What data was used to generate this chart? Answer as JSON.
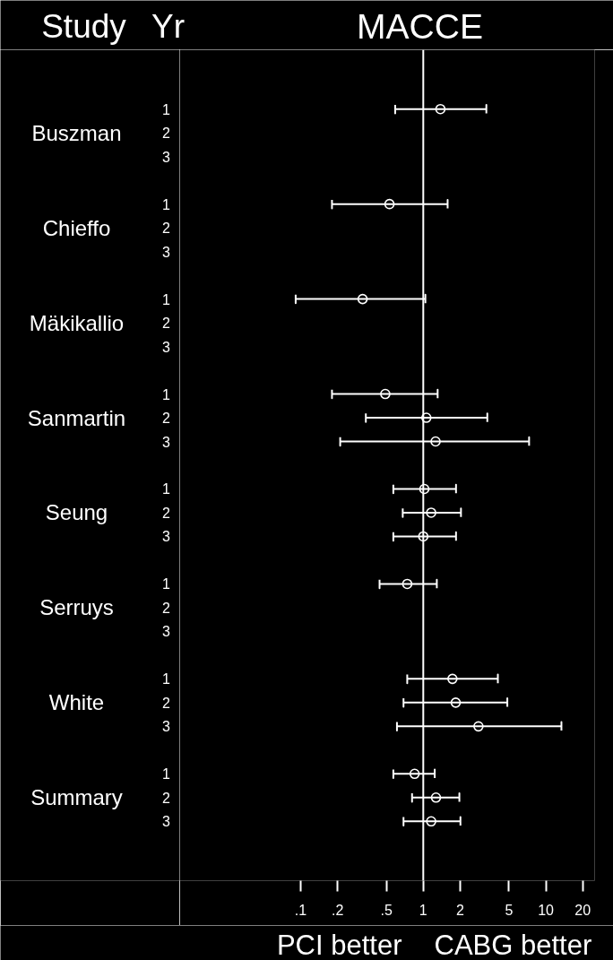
{
  "chart_data": {
    "type": "scatter",
    "orientation": "horizontal",
    "title": "MACCE",
    "ylabel": "Yr",
    "y2label": "Study",
    "categories": [
      null,
      null,
      "1",
      "2",
      "3",
      null,
      "1",
      "2",
      "3",
      null,
      "1",
      "2",
      "3",
      null,
      "1",
      "2",
      "3",
      null,
      "1",
      "2",
      "3",
      null,
      "1",
      "2",
      "3",
      null,
      "1",
      "2",
      "3",
      null,
      "1",
      "2",
      "3",
      null,
      null
    ],
    "y2_categories": [
      null,
      null,
      null,
      "Buszman",
      null,
      null,
      null,
      "Chieffo",
      null,
      null,
      null,
      "Mäkikallio",
      null,
      null,
      null,
      "Sanmartin",
      null,
      null,
      null,
      "Seung",
      null,
      null,
      null,
      "Serruys",
      null,
      null,
      null,
      "White",
      null,
      null,
      null,
      "Summary",
      null,
      null,
      null
    ],
    "values": [
      null,
      null,
      1.38,
      null,
      null,
      null,
      0.53,
      null,
      null,
      null,
      0.32,
      null,
      null,
      null,
      0.49,
      1.06,
      1.26,
      null,
      1.02,
      1.16,
      1.0,
      null,
      0.74,
      null,
      null,
      null,
      1.73,
      1.84,
      2.82,
      null,
      0.85,
      1.27,
      1.16,
      null,
      null
    ],
    "errors": [
      null,
      null,
      [
        0.59,
        3.27
      ],
      null,
      null,
      null,
      [
        0.18,
        1.58
      ],
      null,
      null,
      null,
      [
        0.091,
        1.04
      ],
      null,
      null,
      null,
      [
        0.18,
        1.31
      ],
      [
        0.34,
        3.33
      ],
      [
        0.21,
        7.3
      ],
      null,
      [
        0.57,
        1.85
      ],
      [
        0.68,
        2.03
      ],
      [
        0.57,
        1.85
      ],
      null,
      [
        0.44,
        1.29
      ],
      null,
      null,
      null,
      [
        0.74,
        4.06
      ],
      [
        0.69,
        4.85
      ],
      [
        0.61,
        13.4
      ],
      null,
      [
        0.57,
        1.24
      ],
      [
        0.81,
        1.97
      ],
      [
        0.69,
        2.01
      ],
      null,
      null
    ],
    "color": "#ffffff",
    "marker": "circle",
    "log": "x",
    "xlim": [
      0.0103,
      25
    ],
    "xticks": [
      {
        "value": 0.1,
        "label": ".1"
      },
      {
        "value": 0.2,
        "label": ".2"
      },
      {
        "value": 0.5,
        "label": ".5"
      },
      1,
      2,
      5,
      10,
      20
    ],
    "ref_lines": [
      {
        "axis": "x",
        "value": 1,
        "color": "#ffffff"
      }
    ],
    "annotations": [
      "PCI better",
      "CABG better"
    ]
  }
}
